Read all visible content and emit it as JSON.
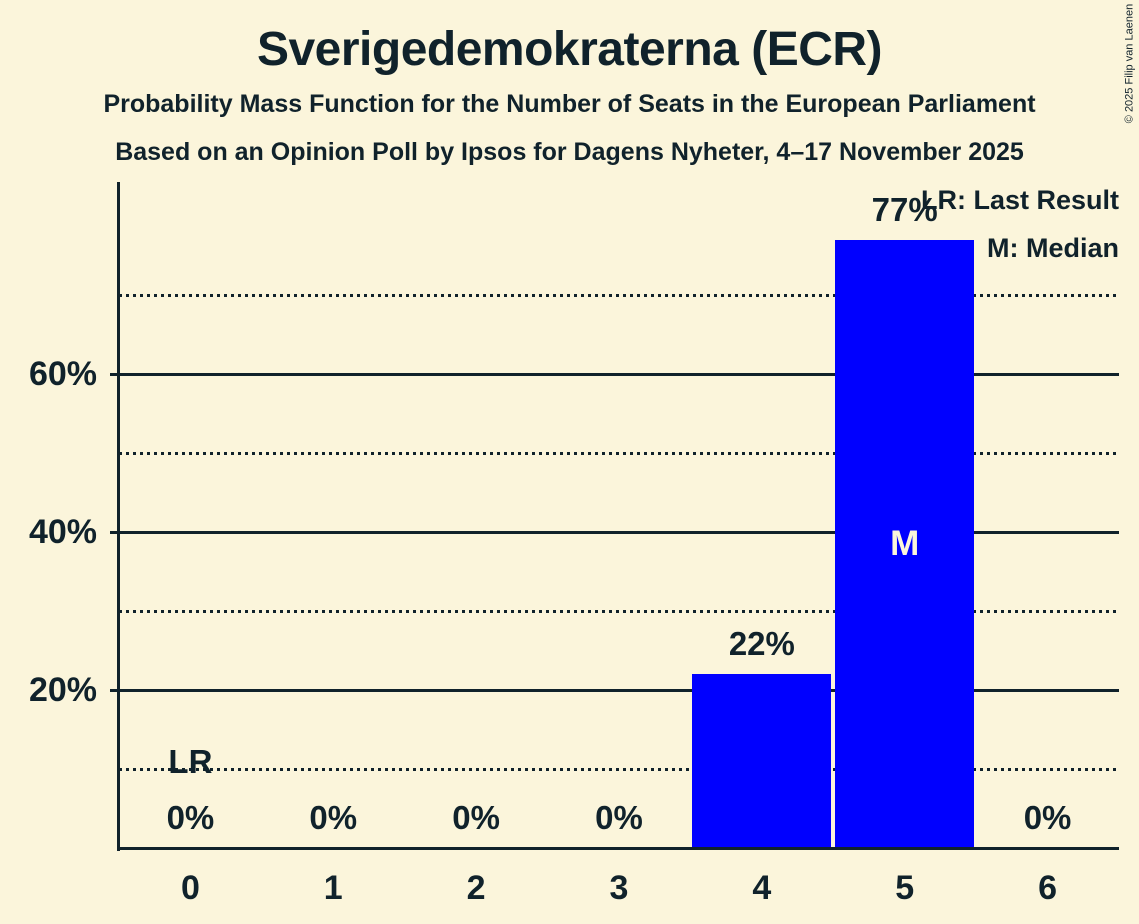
{
  "title": "Sverigedemokraterna (ECR)",
  "subtitle1": "Probability Mass Function for the Number of Seats in the European Parliament",
  "subtitle2": "Based on an Opinion Poll by Ipsos for Dagens Nyheter, 4–17 November 2025",
  "copyright": "© 2025 Filip van Laenen",
  "legend": {
    "last_result": "LR: Last Result",
    "median": "M: Median"
  },
  "colors": {
    "background": "#FBF5DB",
    "text": "#10222B",
    "bar": "#0000FF",
    "median_label": "#FBF5DB"
  },
  "chart_data": {
    "type": "bar",
    "title": "Sverigedemokraterna (ECR)",
    "categories": [
      "0",
      "1",
      "2",
      "3",
      "4",
      "5",
      "6"
    ],
    "values": [
      0,
      0,
      0,
      0,
      22,
      77,
      0
    ],
    "value_labels": [
      "0%",
      "0%",
      "0%",
      "0%",
      "22%",
      "77%",
      "0%"
    ],
    "xlabel": "",
    "ylabel": "",
    "ylim": [
      0,
      84
    ],
    "yticks": [
      {
        "value": 20,
        "label": "20%"
      },
      {
        "value": 40,
        "label": "40%"
      },
      {
        "value": 60,
        "label": "60%"
      }
    ],
    "gridlines": {
      "solid": [
        20,
        40,
        60
      ],
      "dotted": [
        10,
        30,
        50,
        70
      ]
    },
    "legend_position": "top-right",
    "annotations": {
      "median": {
        "category": "5",
        "label": "M"
      },
      "last_result": {
        "category": "0",
        "label": "LR"
      }
    }
  }
}
